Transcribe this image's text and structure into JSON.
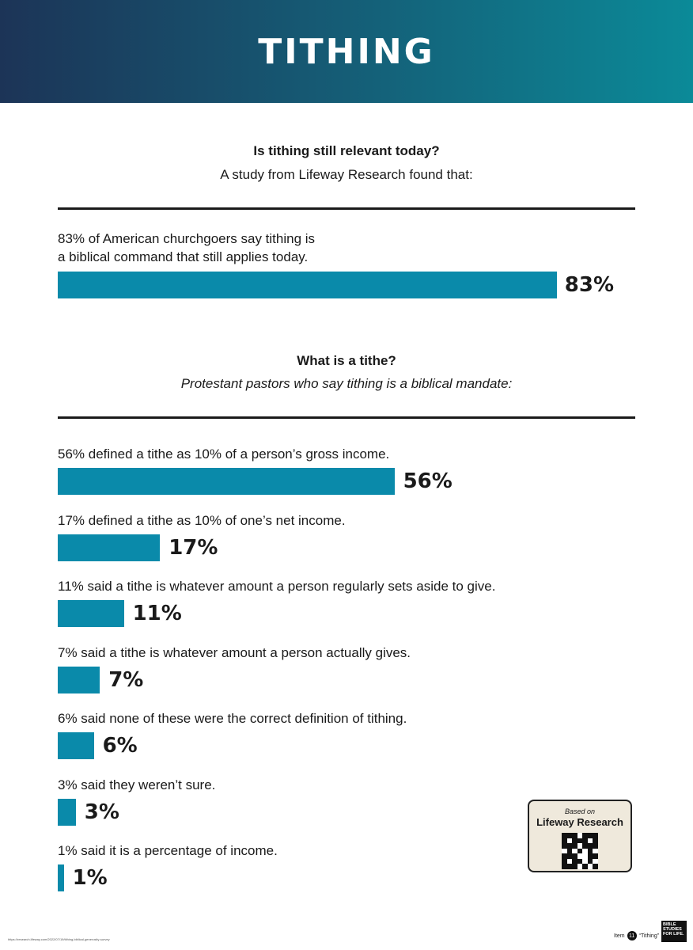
{
  "header": {
    "title": "TITHING"
  },
  "section1": {
    "title": "Is tithing still relevant today?",
    "subtitle": "A study from Lifeway Research found that:"
  },
  "section2": {
    "title": "What is a tithe?",
    "subtitle": "Protestant pastors who say tithing is a biblical mandate:"
  },
  "chart_data": [
    {
      "type": "bar",
      "orientation": "horizontal",
      "categories": [
        "83% of American churchgoers say tithing is a biblical command that still applies today."
      ],
      "values": [
        83
      ],
      "value_labels": [
        "83%"
      ],
      "label_lines": [
        [
          "83% of American churchgoers say tithing is",
          "a biblical command that still applies today."
        ]
      ],
      "xlim": [
        0,
        100
      ]
    },
    {
      "type": "bar",
      "orientation": "horizontal",
      "categories": [
        "56% defined a tithe as 10% of a person’s gross income.",
        "17% defined a tithe as 10% of one’s net income.",
        "11% said a tithe is whatever amount a person regularly sets aside to give.",
        "7% said a tithe is whatever amount a person actually gives.",
        "6% said none of these were the correct definition of tithing.",
        "3% said they weren’t sure.",
        "1% said it is a percentage of income."
      ],
      "values": [
        56,
        17,
        11,
        7,
        6,
        3,
        1
      ],
      "value_labels": [
        "56%",
        "17%",
        "11%",
        "7%",
        "6%",
        "3%",
        "1%"
      ],
      "xlim": [
        0,
        100
      ]
    }
  ],
  "colors": {
    "bar": "#0a8aaa",
    "header_start": "#1c3457",
    "header_end": "#0b8a98"
  },
  "qr_card": {
    "based_on": "Based on",
    "org": "Lifeway Research"
  },
  "footer": {
    "url": "https://research.lifeway.com/2022/07/19/tithing-biblical-generosity-survey",
    "item_label": "Item",
    "item_number": "11",
    "item_name": "“Tithing”",
    "logo_text": "BIBLE STUDIES FOR LIFE."
  }
}
